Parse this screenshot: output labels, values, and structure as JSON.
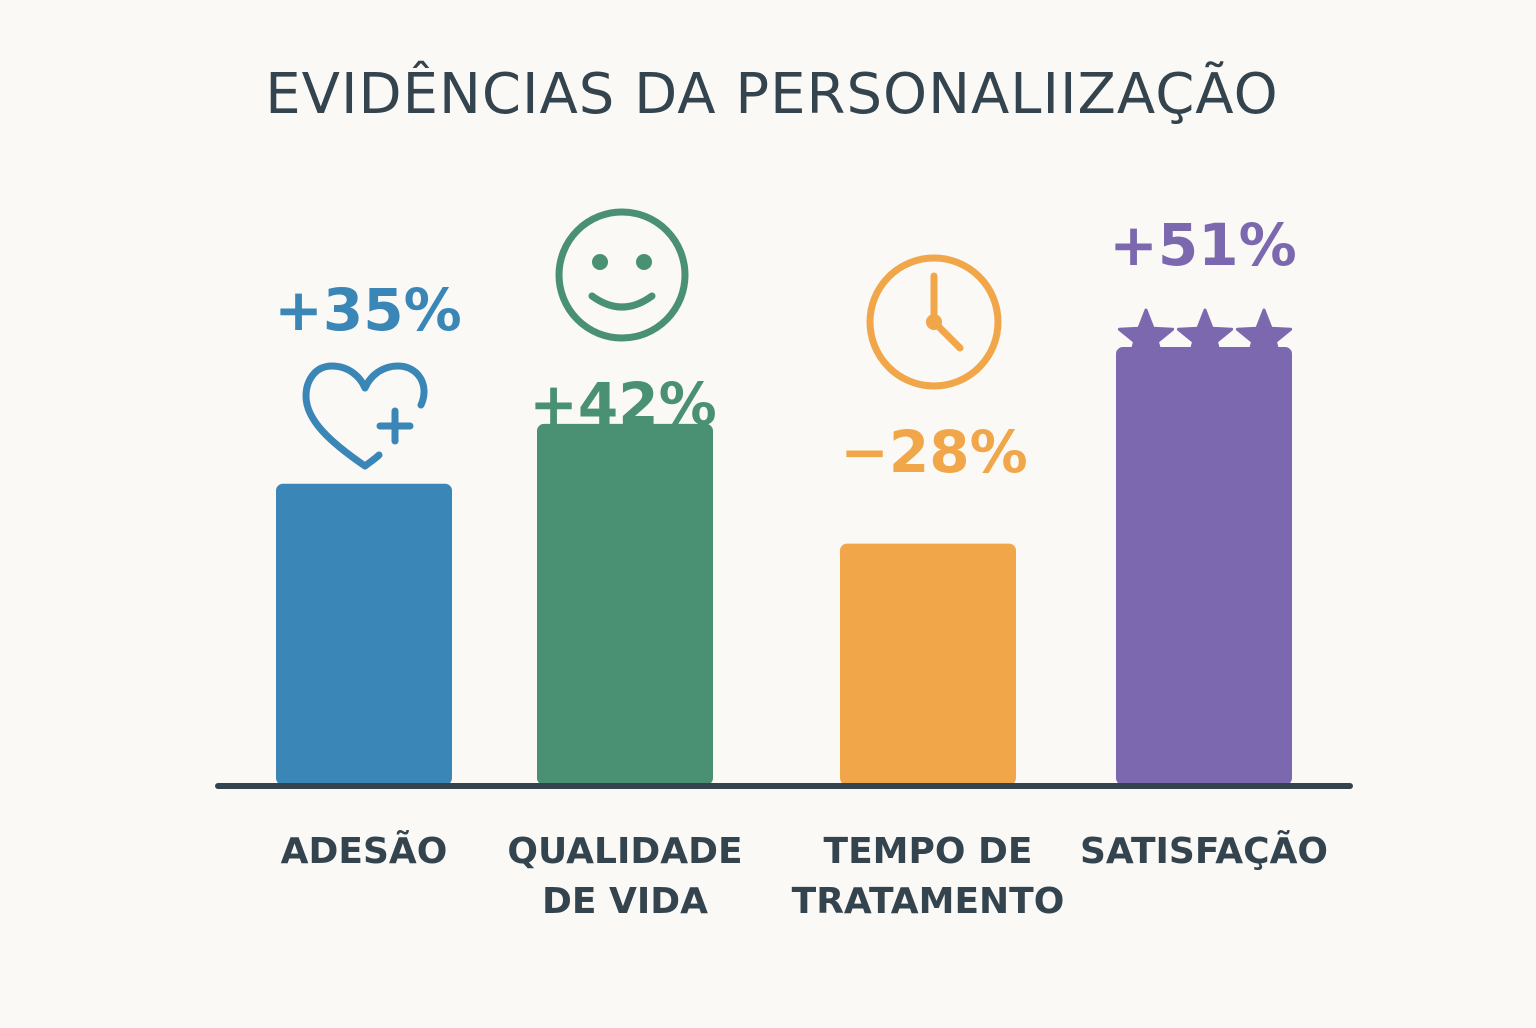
{
  "title": "EVIDÊNCIAS DA PERSONALIIZAÇÃO",
  "colors": {
    "text": "#34444f",
    "axis": "#34444f",
    "background": "#faf9f6"
  },
  "chart_data": {
    "type": "bar",
    "title": "EVIDÊNCIAS DA PERSONALIIZAÇÃO",
    "xlabel": "",
    "ylabel": "",
    "grid": false,
    "ylim": [
      0,
      60
    ],
    "categories": [
      [
        "ADESÃO"
      ],
      [
        "QUALIDADE",
        "DE VIDA"
      ],
      [
        "TEMPO DE",
        "TRATAMENTO"
      ],
      [
        "SATISFAÇÃO"
      ]
    ],
    "values": [
      35,
      42,
      28,
      51
    ],
    "value_labels": [
      "+35%",
      "+42%",
      "−28%",
      "+51%"
    ],
    "colors": [
      "#3a86b6",
      "#4a9072",
      "#f1a64a",
      "#7c68ae"
    ],
    "icons": [
      "heart-plus-icon",
      "smiley-face-icon",
      "clock-icon",
      "three-stars-icon"
    ]
  }
}
